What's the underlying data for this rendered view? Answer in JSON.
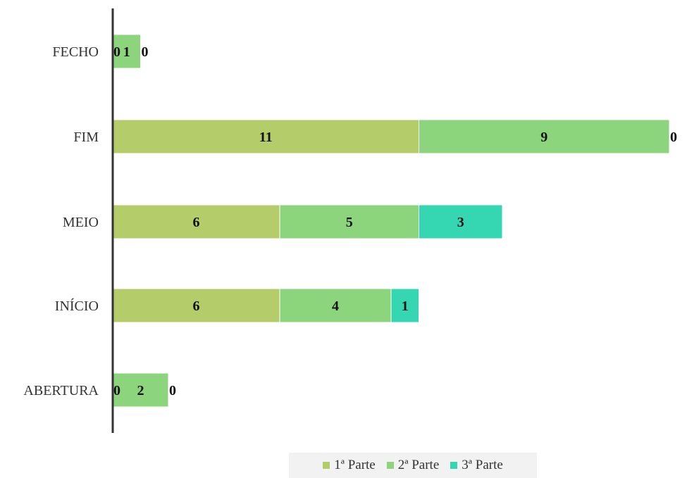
{
  "chart_data": {
    "type": "bar",
    "orientation": "horizontal",
    "stacked": true,
    "categories": [
      "ABERTURA",
      "INÍCIO",
      "MEIO",
      "FIM",
      "FECHO"
    ],
    "series": [
      {
        "name": "1ª Parte",
        "values": [
          0,
          6,
          6,
          11,
          0
        ],
        "color": "#b5cc6a"
      },
      {
        "name": "2ª Parte",
        "values": [
          2,
          4,
          5,
          9,
          1
        ],
        "color": "#8dd57c"
      },
      {
        "name": "3ª Parte",
        "values": [
          0,
          1,
          3,
          0,
          0
        ],
        "color": "#35d6b2"
      }
    ],
    "title": "",
    "xlabel": "",
    "ylabel": "",
    "xlim": [
      0,
      20
    ],
    "grid": false,
    "legend_position": "bottom"
  }
}
